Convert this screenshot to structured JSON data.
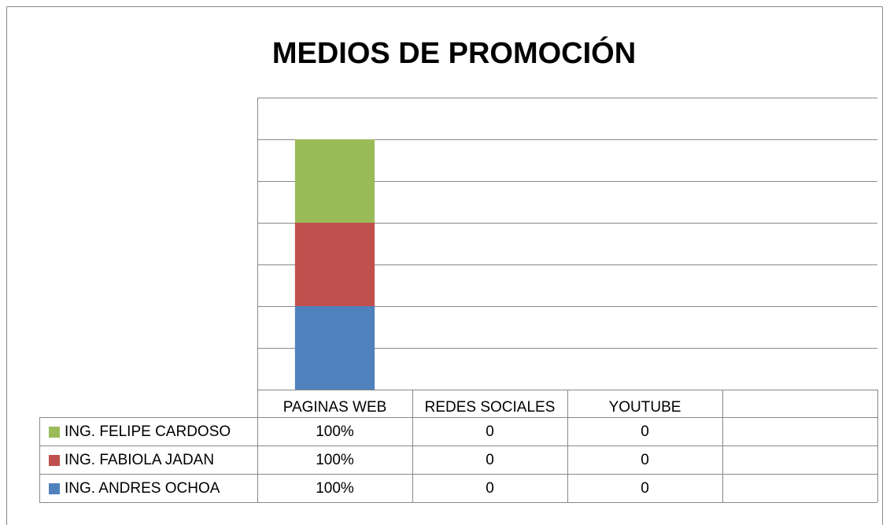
{
  "chart_data": {
    "type": "stacked_bar",
    "title": "MEDIOS DE PROMOCIÓN",
    "categories": [
      "PAGINAS WEB",
      "REDES SOCIALES",
      "YOUTUBE",
      null
    ],
    "series": [
      {
        "name": "ING. ANDRES OCHOA",
        "color": "#4f81bd",
        "values": [
          100,
          0,
          0,
          null
        ],
        "value_labels": [
          "100%",
          "0",
          "0",
          null
        ]
      },
      {
        "name": "ING. FABIOLA JADAN",
        "color": "#c0504d",
        "values": [
          100,
          0,
          0,
          null
        ],
        "value_labels": [
          "100%",
          "0",
          "0",
          null
        ]
      },
      {
        "name": "ING. FELIPE CARDOSO",
        "color": "#9bbb59",
        "values": [
          100,
          0,
          0,
          null
        ],
        "value_labels": [
          "100%",
          "0",
          "0",
          null
        ]
      }
    ],
    "ylim": [
      0,
      350
    ],
    "yticks": [
      0,
      50,
      100,
      150,
      200,
      250,
      300,
      350
    ],
    "grid": true,
    "data_table": true
  }
}
